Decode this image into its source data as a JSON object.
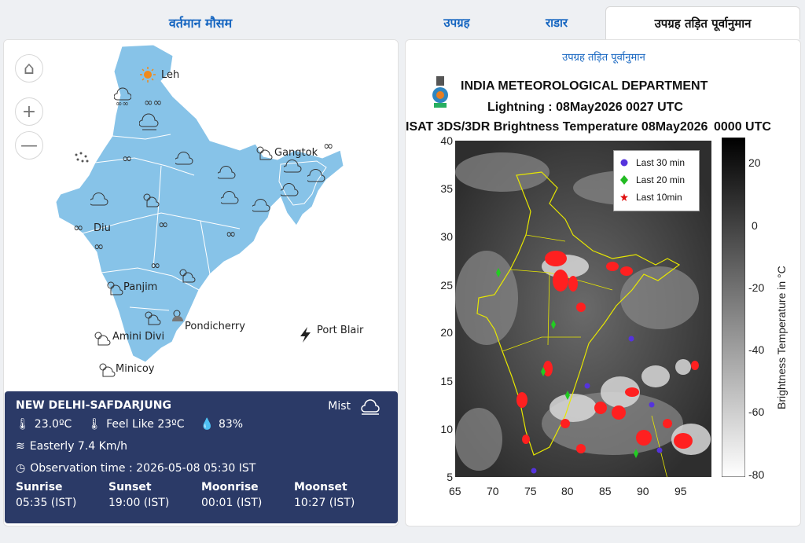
{
  "left": {
    "title": "वर्तमान मौसम",
    "cities": [
      {
        "id": "leh",
        "label": "Leh"
      },
      {
        "id": "gangtok",
        "label": "Gangtok"
      },
      {
        "id": "diu",
        "label": "Diu"
      },
      {
        "id": "panjim",
        "label": "Panjim"
      },
      {
        "id": "pondicherry",
        "label": "Pondicherry"
      },
      {
        "id": "port-blair",
        "label": "Port Blair"
      },
      {
        "id": "amini-divi",
        "label": "Amini Divi"
      },
      {
        "id": "minicoy",
        "label": "Minicoy"
      }
    ],
    "controls": {
      "home": "⌂",
      "zoom_in": "+",
      "zoom_out": "—"
    }
  },
  "station": {
    "name": "NEW DELHI-SAFDARJUNG",
    "condition": "Mist",
    "temperature": "23.0ºC",
    "feel_like": "Feel Like 23ºC",
    "humidity": "83%",
    "wind": "Easterly 7.4 Km/h",
    "observation": "Observation time : 2026-05-08 05:30 IST",
    "sun": [
      {
        "label": "Sunrise",
        "value": "05:35 (IST)"
      },
      {
        "label": "Sunset",
        "value": "19:00 (IST)"
      },
      {
        "label": "Moonrise",
        "value": "00:01 (IST)"
      },
      {
        "label": "Moonset",
        "value": "10:27 (IST)"
      }
    ]
  },
  "tabs": [
    {
      "label": "उपग्रह"
    },
    {
      "label": "राडार"
    },
    {
      "label": "उपग्रह तड़ित पूर्वानुमान"
    }
  ],
  "right": {
    "subtitle": "उपग्रह तड़ित पूर्वानुमान",
    "imd_title": "INDIA METEOROLOGICAL DEPARTMENT",
    "imd_line1": "Lightning : 08May2026 0027 UTC",
    "imd_line2": "ISAT 3DS/3DR Brightness Temperature 08May2026",
    "imd_line2b": "0000 UTC",
    "y_ticks": [
      "40",
      "35",
      "30",
      "25",
      "20",
      "15",
      "10",
      "5"
    ],
    "x_ticks": [
      "65",
      "70",
      "75",
      "80",
      "85",
      "90",
      "95"
    ],
    "cbar_ticks": [
      "20",
      "0",
      "-20",
      "-40",
      "-60",
      "-80"
    ],
    "cbar_label": "Brightness Temperature in  °C",
    "legend": [
      {
        "label": "Last 30 min",
        "color": "#5533dd"
      },
      {
        "label": "Last 20 min",
        "color": "#22bb22"
      },
      {
        "label": "Last 10min",
        "color": "#e01010"
      }
    ]
  }
}
